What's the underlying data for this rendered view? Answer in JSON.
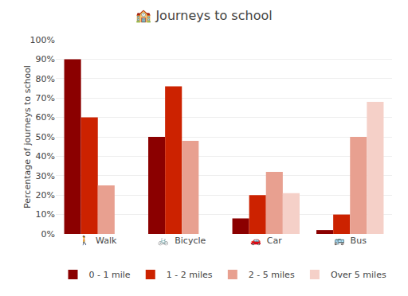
{
  "chart_data": {
    "type": "bar",
    "title": "🏫 Journeys to school",
    "categories": [
      "🚶  Walk",
      "🚲  Bicycle",
      "🚗  Car",
      "🚌  Bus"
    ],
    "series": [
      {
        "name": "0 - 1 mile",
        "values": [
          90,
          50,
          8,
          2
        ],
        "color": "#8B0000"
      },
      {
        "name": "1 - 2 miles",
        "values": [
          60,
          76,
          20,
          10
        ],
        "color": "#CC2200"
      },
      {
        "name": "2 - 5 miles",
        "values": [
          25,
          48,
          32,
          50
        ],
        "color": "#E8A090"
      },
      {
        "name": "Over 5 miles",
        "values": [
          0,
          0,
          21,
          68
        ],
        "color": "#F5D0C8"
      }
    ],
    "ylabel": "Percentage of journeys to school",
    "ylim": [
      0,
      100
    ],
    "yticks": [
      {
        "value": 0,
        "label": "0%"
      },
      {
        "value": 10,
        "label": "10%"
      },
      {
        "value": 20,
        "label": "20%"
      },
      {
        "value": 30,
        "label": "30%"
      },
      {
        "value": 40,
        "label": "40%"
      },
      {
        "value": 50,
        "label": "50%"
      },
      {
        "value": 60,
        "label": "60%"
      },
      {
        "value": 70,
        "label": "70%"
      },
      {
        "value": 80,
        "label": "80%"
      },
      {
        "value": 90,
        "label": "90%"
      },
      {
        "value": 100,
        "label": "100%"
      }
    ],
    "grid": true,
    "legend": "bottom"
  }
}
